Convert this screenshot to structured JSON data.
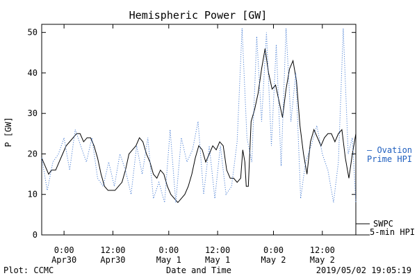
{
  "chart_data": {
    "type": "line",
    "title": "Hemispheric Power [GW]",
    "xlabel": "Date and Time",
    "ylabel": "P [GW]",
    "xlim": [
      -0.2,
      44.8
    ],
    "ylim": [
      0,
      52
    ],
    "y_ticks": [
      0,
      10,
      20,
      30,
      40,
      50
    ],
    "x_ticks": [
      {
        "x": 3,
        "line1": "0:00",
        "line2": "Apr30"
      },
      {
        "x": 10,
        "line1": "12:00",
        "line2": "Apr30"
      },
      {
        "x": 18,
        "line1": "0:00",
        "line2": "May 1"
      },
      {
        "x": 25,
        "line1": "12:00",
        "line2": "May 1"
      },
      {
        "x": 33,
        "line1": "0:00",
        "line2": "May 2"
      },
      {
        "x": 40,
        "line1": "12:00",
        "line2": "May 2"
      }
    ],
    "series": [
      {
        "name": "SWPC 5-min HPI",
        "legend_line1": "SWPC",
        "legend_line2": "5-min HPI",
        "color": "#000000",
        "style": "solid",
        "points": [
          [
            -0.2,
            19
          ],
          [
            0.3,
            17
          ],
          [
            0.8,
            15
          ],
          [
            1.2,
            16
          ],
          [
            1.8,
            16
          ],
          [
            2.3,
            18
          ],
          [
            2.8,
            20
          ],
          [
            3.3,
            22
          ],
          [
            3.8,
            23
          ],
          [
            4.3,
            24
          ],
          [
            4.8,
            25
          ],
          [
            5.3,
            25
          ],
          [
            5.8,
            23
          ],
          [
            6.3,
            24
          ],
          [
            6.8,
            24
          ],
          [
            7.3,
            22
          ],
          [
            7.8,
            19
          ],
          [
            8.3,
            15
          ],
          [
            8.8,
            12
          ],
          [
            9.3,
            11
          ],
          [
            9.8,
            11
          ],
          [
            10.3,
            11
          ],
          [
            10.8,
            12
          ],
          [
            11.3,
            13
          ],
          [
            11.8,
            16
          ],
          [
            12.3,
            20
          ],
          [
            12.8,
            21
          ],
          [
            13.3,
            22
          ],
          [
            13.8,
            24
          ],
          [
            14.3,
            23
          ],
          [
            14.8,
            20
          ],
          [
            15.3,
            18
          ],
          [
            15.8,
            15
          ],
          [
            16.3,
            14
          ],
          [
            16.8,
            16
          ],
          [
            17.3,
            15
          ],
          [
            17.8,
            12
          ],
          [
            18.3,
            10
          ],
          [
            18.8,
            9
          ],
          [
            19.3,
            8
          ],
          [
            19.8,
            9
          ],
          [
            20.3,
            10
          ],
          [
            20.8,
            12
          ],
          [
            21.3,
            15
          ],
          [
            21.8,
            19
          ],
          [
            22.3,
            22
          ],
          [
            22.8,
            21
          ],
          [
            23.3,
            18
          ],
          [
            23.8,
            20
          ],
          [
            24.3,
            22
          ],
          [
            24.8,
            21
          ],
          [
            25.3,
            23
          ],
          [
            25.8,
            22
          ],
          [
            26.3,
            16
          ],
          [
            26.8,
            14
          ],
          [
            27.3,
            14
          ],
          [
            27.8,
            13
          ],
          [
            28.3,
            14
          ],
          [
            28.6,
            21
          ],
          [
            28.9,
            18
          ],
          [
            29.1,
            12
          ],
          [
            29.4,
            12
          ],
          [
            29.8,
            28
          ],
          [
            30.3,
            31
          ],
          [
            30.8,
            35
          ],
          [
            31.3,
            41
          ],
          [
            31.8,
            46
          ],
          [
            32.3,
            40
          ],
          [
            32.8,
            36
          ],
          [
            33.3,
            37
          ],
          [
            33.8,
            33
          ],
          [
            34.3,
            29
          ],
          [
            34.8,
            36
          ],
          [
            35.3,
            41
          ],
          [
            35.8,
            43
          ],
          [
            36.3,
            38
          ],
          [
            36.8,
            27
          ],
          [
            37.3,
            20
          ],
          [
            37.8,
            15
          ],
          [
            38.3,
            23
          ],
          [
            38.8,
            26
          ],
          [
            39.3,
            24
          ],
          [
            39.8,
            22
          ],
          [
            40.3,
            24
          ],
          [
            40.8,
            25
          ],
          [
            41.3,
            25
          ],
          [
            41.8,
            23
          ],
          [
            42.3,
            25
          ],
          [
            42.8,
            26
          ],
          [
            43.3,
            19
          ],
          [
            43.8,
            14
          ],
          [
            44.3,
            20
          ],
          [
            44.8,
            25
          ]
        ]
      },
      {
        "name": "Ovation Prime HPI",
        "legend_line1": "– Ovation",
        "legend_line2": "Prime HPI",
        "color": "#4a7fd4",
        "style": "dotted",
        "points": [
          [
            -0.2,
            19
          ],
          [
            0.6,
            11
          ],
          [
            1.4,
            18
          ],
          [
            2.2,
            20
          ],
          [
            3,
            24
          ],
          [
            3.8,
            16
          ],
          [
            4.6,
            26
          ],
          [
            5.4,
            22
          ],
          [
            6.2,
            18
          ],
          [
            7,
            24
          ],
          [
            7.8,
            14
          ],
          [
            8.6,
            12
          ],
          [
            9.4,
            18
          ],
          [
            10.2,
            12
          ],
          [
            11,
            20
          ],
          [
            11.8,
            16
          ],
          [
            12.6,
            10
          ],
          [
            13.4,
            22
          ],
          [
            14.2,
            15
          ],
          [
            15,
            24
          ],
          [
            15.8,
            9
          ],
          [
            16.6,
            13
          ],
          [
            17.4,
            8
          ],
          [
            18.2,
            26
          ],
          [
            19,
            8
          ],
          [
            19.8,
            24
          ],
          [
            20.6,
            18
          ],
          [
            21.4,
            21
          ],
          [
            22.2,
            28
          ],
          [
            23,
            10
          ],
          [
            23.8,
            22
          ],
          [
            24.6,
            9
          ],
          [
            25.4,
            22
          ],
          [
            26.2,
            10
          ],
          [
            27,
            12
          ],
          [
            27.8,
            23
          ],
          [
            28.5,
            51
          ],
          [
            29.2,
            24
          ],
          [
            29.9,
            18
          ],
          [
            30.6,
            49
          ],
          [
            31.3,
            28
          ],
          [
            32,
            50
          ],
          [
            32.7,
            22
          ],
          [
            33.4,
            47
          ],
          [
            34.1,
            17
          ],
          [
            34.8,
            51
          ],
          [
            35.5,
            28
          ],
          [
            36.2,
            40
          ],
          [
            36.9,
            9
          ],
          [
            37.6,
            18
          ],
          [
            38.4,
            22
          ],
          [
            39.2,
            27
          ],
          [
            40,
            20
          ],
          [
            40.8,
            16
          ],
          [
            41.6,
            8
          ],
          [
            42.3,
            18
          ],
          [
            43,
            51
          ],
          [
            43.7,
            20
          ],
          [
            44.3,
            24
          ],
          [
            44.8,
            8
          ]
        ]
      }
    ]
  },
  "footer": {
    "left": "Plot: CCMC",
    "right": "2019/05/02 19:05:19"
  }
}
